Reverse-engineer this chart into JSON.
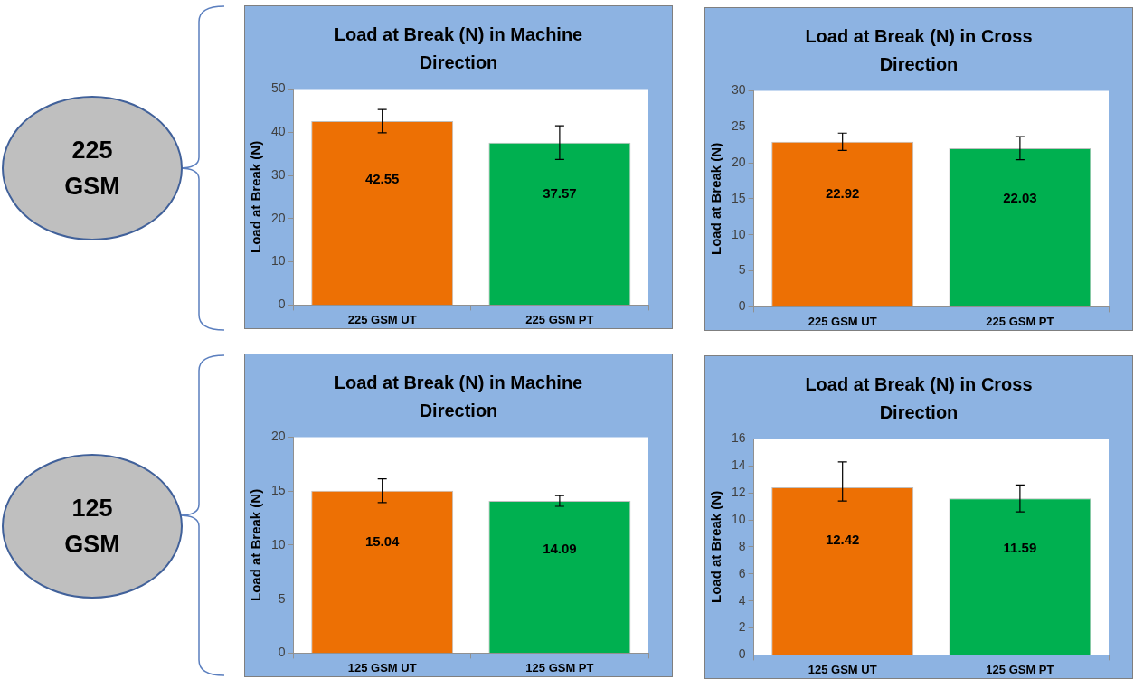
{
  "chart_data": [
    {
      "type": "other",
      "title": "225 GSM"
    },
    {
      "type": "bar",
      "title": "Load at Break (N) in Machine Direction",
      "ylabel": "Load at Break (N)",
      "categories": [
        "225 GSM UT",
        "225 GSM PT"
      ],
      "values": [
        42.55,
        37.57
      ],
      "colors": [
        "#ed7004",
        "#00b050"
      ],
      "errors": [
        2.7,
        3.9
      ],
      "ylim": [
        0,
        50
      ],
      "yticks": [
        0,
        10,
        20,
        30,
        40,
        50
      ],
      "data_labels": true,
      "grid": false,
      "legend": false
    },
    {
      "type": "bar",
      "title": "Load at Break (N) in Cross Direction",
      "ylabel": "Load at Break (N)",
      "categories": [
        "225 GSM UT",
        "225 GSM PT"
      ],
      "values": [
        22.92,
        22.03
      ],
      "colors": [
        "#ed7004",
        "#00b050"
      ],
      "errors": [
        1.2,
        1.6
      ],
      "ylim": [
        0,
        30
      ],
      "yticks": [
        0,
        5,
        10,
        15,
        20,
        25,
        30
      ],
      "data_labels": true,
      "grid": false,
      "legend": false
    },
    {
      "type": "other",
      "title": "125 GSM"
    },
    {
      "type": "bar",
      "title": "Load at Break (N) in Machine Direction",
      "ylabel": "Load at Break (N)",
      "categories": [
        "125 GSM UT",
        "125 GSM PT"
      ],
      "values": [
        15.04,
        14.09
      ],
      "colors": [
        "#ed7004",
        "#00b050"
      ],
      "errors": [
        1.1,
        0.5
      ],
      "ylim": [
        0,
        20
      ],
      "yticks": [
        0,
        5,
        10,
        15,
        20
      ],
      "data_labels": true,
      "grid": false,
      "legend": false
    },
    {
      "type": "bar",
      "title": "Load at Break (N) in Cross Direction",
      "ylabel": "Load at Break (N)",
      "categories": [
        "125 GSM UT",
        "125 GSM PT"
      ],
      "values": [
        12.42,
        11.59
      ],
      "colors": [
        "#ed7004",
        "#00b050"
      ],
      "errors": [
        [
          11.4,
          14.3
        ],
        1.0
      ],
      "ylim": [
        0,
        16
      ],
      "yticks": [
        0,
        2,
        4,
        6,
        8,
        10,
        12,
        14,
        16
      ],
      "data_labels": true,
      "grid": false,
      "legend": false
    }
  ]
}
